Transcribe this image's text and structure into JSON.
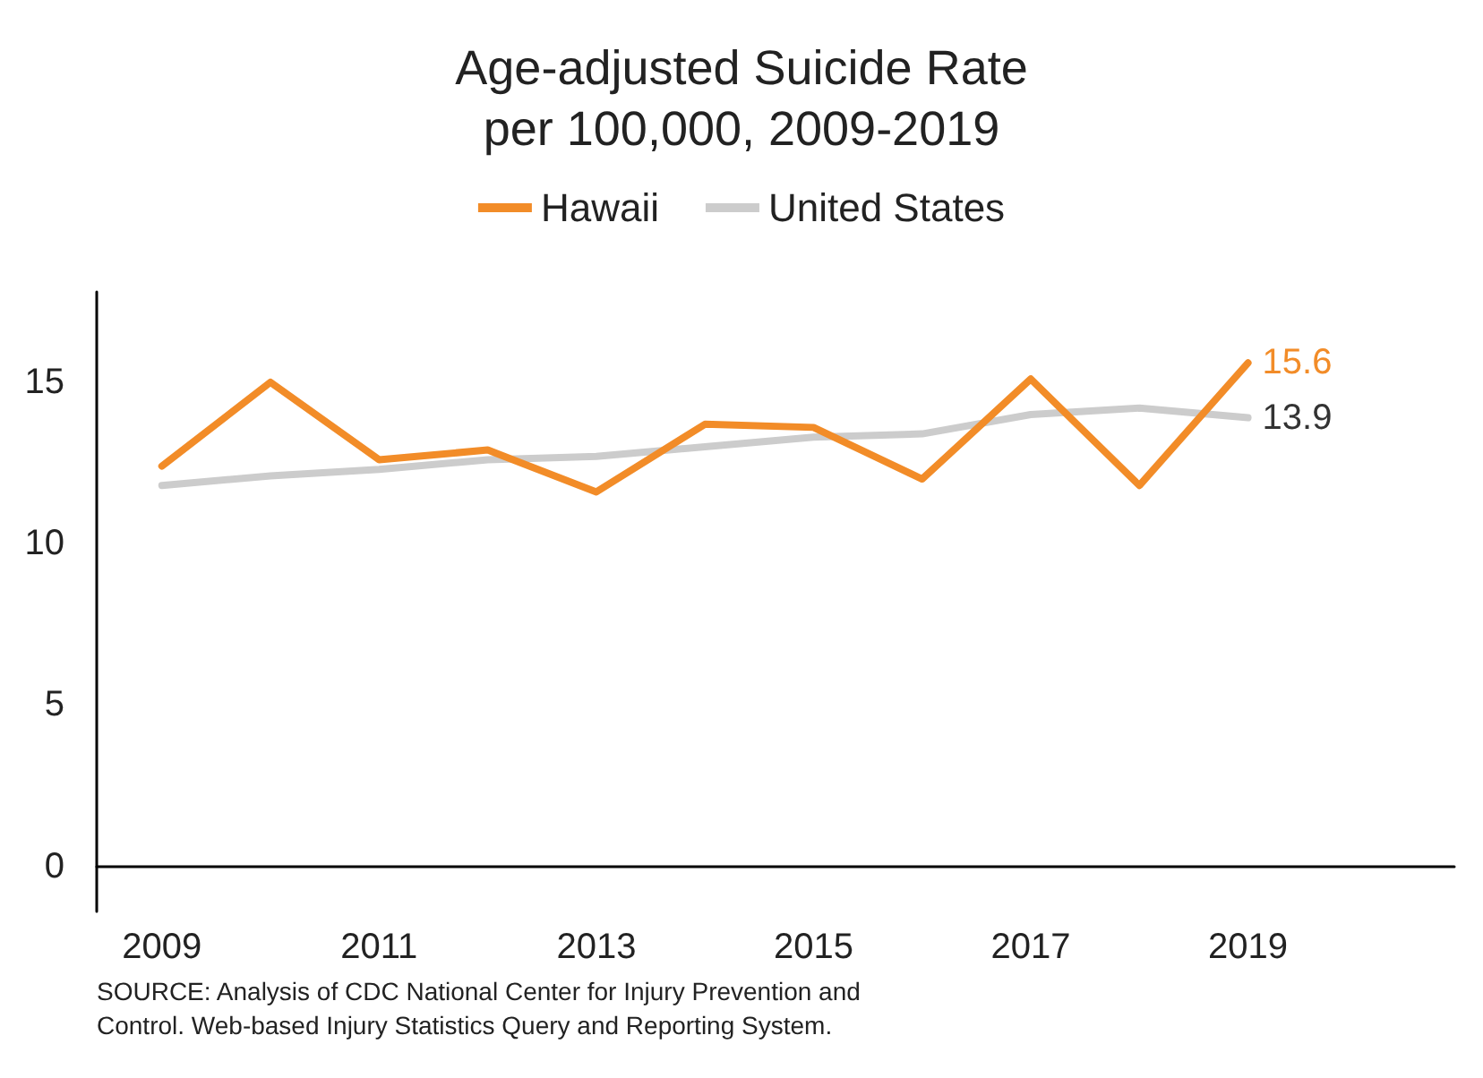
{
  "chart_data": {
    "type": "line",
    "title": "Age-adjusted Suicide Rate\nper 100,000, 2009-2019",
    "x": [
      2009,
      2010,
      2011,
      2012,
      2013,
      2014,
      2015,
      2016,
      2017,
      2018,
      2019
    ],
    "series": [
      {
        "name": "Hawaii",
        "color": "#f28c28",
        "values": [
          12.4,
          15.0,
          12.6,
          12.9,
          11.6,
          13.7,
          13.6,
          12.0,
          15.1,
          11.8,
          15.6
        ],
        "value_labels": [
          null,
          null,
          null,
          null,
          null,
          null,
          null,
          null,
          null,
          null,
          "15.6"
        ]
      },
      {
        "name": "United States",
        "color": "#cccccc",
        "values": [
          11.8,
          12.1,
          12.3,
          12.6,
          12.7,
          13.0,
          13.3,
          13.4,
          14.0,
          14.2,
          13.9
        ],
        "value_labels": [
          null,
          null,
          null,
          null,
          null,
          null,
          null,
          null,
          null,
          null,
          "13.9"
        ]
      }
    ],
    "xlim": [
      2008.4,
      2020.9
    ],
    "xticks": [
      2009,
      2011,
      2013,
      2015,
      2017,
      2019
    ],
    "ylim": [
      -1.4,
      17.8
    ],
    "yticks": [
      0,
      5,
      10,
      15
    ],
    "grid": false,
    "legend": "top",
    "marker": "none",
    "line_style": "solid",
    "annotations": [
      "SOURCE: Analysis of CDC National Center for Injury Prevention and\nControl. Web-based Injury Statistics Query and Reporting System."
    ]
  }
}
